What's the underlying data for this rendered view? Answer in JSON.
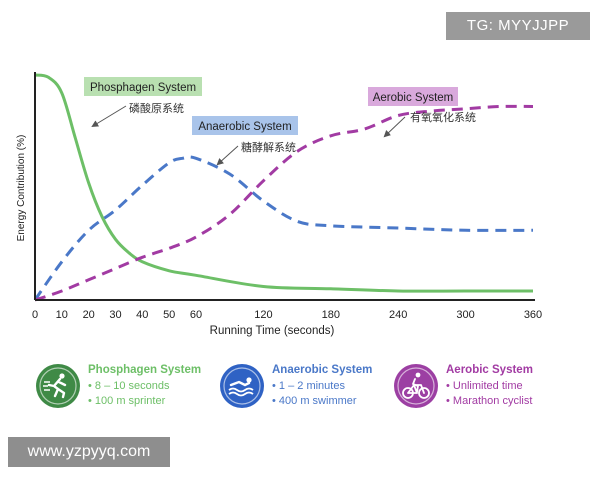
{
  "watermarks": {
    "top": "TG: MYYJJPP",
    "bottom": "www.yzpyyq.com"
  },
  "colors": {
    "phosphagen": "#6dbf67",
    "anaerobic": "#4a78c8",
    "aerobic": "#a23ba3",
    "axis": "#222222"
  },
  "chart_data": {
    "type": "line",
    "title": "",
    "xlabel": "Running Time (seconds)",
    "ylabel": "Energy Contribution (%)",
    "xticks": [
      0,
      10,
      20,
      30,
      40,
      50,
      60,
      120,
      180,
      240,
      300,
      360
    ],
    "x_scale": "piecewise",
    "x_segments": [
      [
        0,
        60
      ],
      [
        60,
        360
      ]
    ],
    "ylim": [
      0,
      100
    ],
    "grid": false,
    "legend": "callouts",
    "series": [
      {
        "name": "Phosphagen System",
        "label_zh": "磷酸原系统",
        "style": "solid",
        "color": "#6dbf67",
        "points": [
          [
            0,
            100
          ],
          [
            5,
            99
          ],
          [
            10,
            92
          ],
          [
            15,
            72
          ],
          [
            20,
            52
          ],
          [
            25,
            37
          ],
          [
            30,
            27
          ],
          [
            35,
            21
          ],
          [
            40,
            17
          ],
          [
            50,
            13
          ],
          [
            60,
            11
          ],
          [
            120,
            6
          ],
          [
            180,
            5
          ],
          [
            240,
            4
          ],
          [
            300,
            4
          ],
          [
            360,
            4
          ]
        ]
      },
      {
        "name": "Anaerobic System",
        "label_zh": "糖酵解系统",
        "style": "dashed",
        "color": "#4a78c8",
        "points": [
          [
            0,
            0
          ],
          [
            10,
            17
          ],
          [
            20,
            31
          ],
          [
            30,
            40
          ],
          [
            40,
            51
          ],
          [
            50,
            61
          ],
          [
            55,
            63
          ],
          [
            60,
            63
          ],
          [
            90,
            56
          ],
          [
            120,
            44
          ],
          [
            150,
            35
          ],
          [
            180,
            33
          ],
          [
            240,
            32
          ],
          [
            300,
            31
          ],
          [
            360,
            31
          ]
        ]
      },
      {
        "name": "Aerobic System",
        "label_zh": "有氧氧化系统",
        "style": "dashed",
        "color": "#a23ba3",
        "points": [
          [
            0,
            0
          ],
          [
            10,
            4
          ],
          [
            20,
            9
          ],
          [
            30,
            14
          ],
          [
            40,
            19
          ],
          [
            50,
            23
          ],
          [
            60,
            28
          ],
          [
            90,
            38
          ],
          [
            120,
            53
          ],
          [
            150,
            66
          ],
          [
            180,
            73
          ],
          [
            210,
            76
          ],
          [
            240,
            82
          ],
          [
            270,
            84
          ],
          [
            300,
            85
          ],
          [
            330,
            86
          ],
          [
            360,
            86
          ]
        ]
      }
    ]
  },
  "systems": [
    {
      "name": "Phosphagen System",
      "color": "#6dbf67",
      "badge_bg": "#3f8a46",
      "icon": "sprinter-icon",
      "lines": [
        "8 – 10 seconds",
        "100 m sprinter"
      ]
    },
    {
      "name": "Anaerobic System",
      "color": "#4a78c8",
      "badge_bg": "#2f62c4",
      "icon": "swimmer-icon",
      "lines": [
        "1 – 2 minutes",
        "400 m swimmer"
      ]
    },
    {
      "name": "Aerobic System",
      "color": "#a23ba3",
      "badge_bg": "#9c3fa3",
      "icon": "cyclist-icon",
      "lines": [
        "Unlimited time",
        "Marathon cyclist"
      ]
    }
  ]
}
